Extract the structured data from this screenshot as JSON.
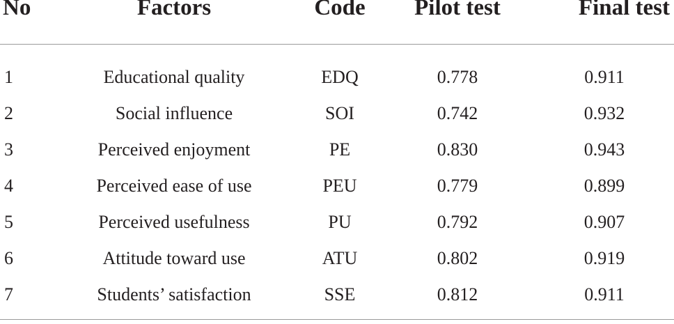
{
  "table": {
    "headers": {
      "no": "No",
      "factors": "Factors",
      "code": "Code",
      "pilot": "Pilot test",
      "final": "Final test"
    },
    "rows": [
      {
        "no": "1",
        "factor": "Educational quality",
        "code": "EDQ",
        "pilot": "0.778",
        "final": "0.911"
      },
      {
        "no": "2",
        "factor": "Social influence",
        "code": "SOI",
        "pilot": "0.742",
        "final": "0.932"
      },
      {
        "no": "3",
        "factor": "Perceived enjoyment",
        "code": "PE",
        "pilot": "0.830",
        "final": "0.943"
      },
      {
        "no": "4",
        "factor": "Perceived ease of use",
        "code": "PEU",
        "pilot": "0.779",
        "final": "0.899"
      },
      {
        "no": "5",
        "factor": "Perceived usefulness",
        "code": "PU",
        "pilot": "0.792",
        "final": "0.907"
      },
      {
        "no": "6",
        "factor": "Attitude toward use",
        "code": "ATU",
        "pilot": "0.802",
        "final": "0.919"
      },
      {
        "no": "7",
        "factor": "Students’ satisfaction",
        "code": "SSE",
        "pilot": "0.812",
        "final": "0.911"
      }
    ]
  }
}
